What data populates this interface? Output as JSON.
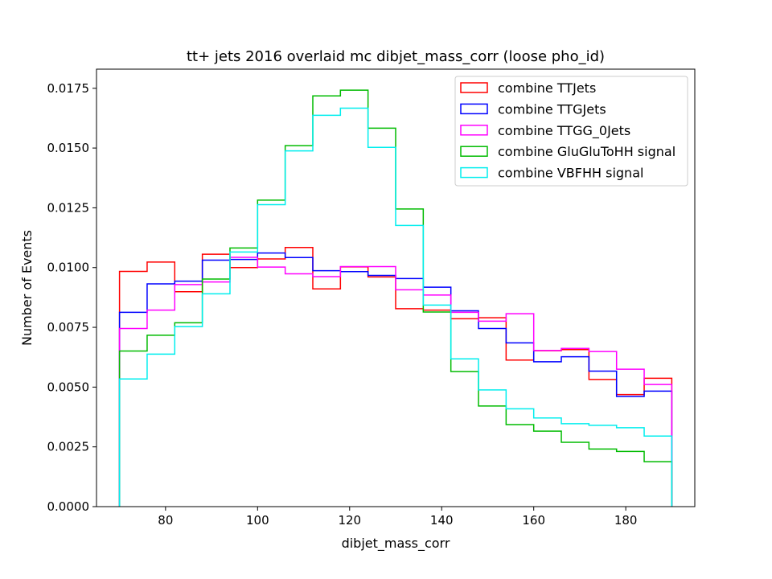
{
  "chart_data": {
    "type": "histogram-step",
    "title": "tt+ jets 2016 overlaid mc dibjet_mass_corr (loose pho_id)",
    "xlabel": "dibjet_mass_corr",
    "ylabel": "Number of Events",
    "xlim": [
      65,
      195
    ],
    "ylim": [
      0,
      0.0183
    ],
    "xticks": [
      80,
      100,
      120,
      140,
      160,
      180
    ],
    "xtick_labels": [
      "80",
      "100",
      "120",
      "140",
      "160",
      "180"
    ],
    "yticks": [
      0,
      0.0025,
      0.005,
      0.0075,
      0.01,
      0.0125,
      0.015,
      0.0175
    ],
    "ytick_labels": [
      "0.0000",
      "0.0025",
      "0.0050",
      "0.0075",
      "0.0100",
      "0.0125",
      "0.0150",
      "0.0175"
    ],
    "grid": false,
    "legend_position": "top-right",
    "bin_edges": [
      70,
      76,
      82,
      88,
      94,
      100,
      106,
      112,
      118,
      124,
      130,
      136,
      142,
      148,
      154,
      160,
      166,
      172,
      178,
      184,
      190
    ],
    "series": [
      {
        "name": "combine TTJets",
        "color": "#ff0000",
        "values": [
          0.00984,
          0.01023,
          0.00899,
          0.01056,
          0.01,
          0.01036,
          0.01084,
          0.00911,
          0.01003,
          0.00961,
          0.00828,
          0.00822,
          0.00786,
          0.0079,
          0.00613,
          0.00652,
          0.00657,
          0.00532,
          0.00469,
          0.00537
        ]
      },
      {
        "name": "combine TTGJets",
        "color": "#0000ff",
        "values": [
          0.00813,
          0.00932,
          0.00943,
          0.01031,
          0.01034,
          0.01061,
          0.01042,
          0.00987,
          0.00983,
          0.00967,
          0.00954,
          0.00918,
          0.00819,
          0.00745,
          0.00685,
          0.00606,
          0.00627,
          0.00567,
          0.00461,
          0.00483
        ]
      },
      {
        "name": "combine TTGG_0Jets",
        "color": "#ff00ff",
        "values": [
          0.00745,
          0.00822,
          0.00929,
          0.0094,
          0.01043,
          0.01002,
          0.00974,
          0.00962,
          0.01004,
          0.01004,
          0.00907,
          0.00885,
          0.00813,
          0.00776,
          0.00807,
          0.00653,
          0.00662,
          0.00649,
          0.00575,
          0.00511
        ]
      },
      {
        "name": "combine GluGluToHH signal",
        "color": "#00bb00",
        "values": [
          0.00651,
          0.00717,
          0.00769,
          0.00952,
          0.01082,
          0.01282,
          0.0151,
          0.01718,
          0.01742,
          0.01583,
          0.01245,
          0.00814,
          0.00565,
          0.00421,
          0.00343,
          0.00316,
          0.00269,
          0.00241,
          0.00231,
          0.00188
        ]
      },
      {
        "name": "combine VBFHH signal",
        "color": "#00eeee",
        "values": [
          0.00534,
          0.00638,
          0.00753,
          0.0089,
          0.01065,
          0.01263,
          0.01488,
          0.01637,
          0.01667,
          0.01503,
          0.01176,
          0.00843,
          0.00618,
          0.00488,
          0.00409,
          0.00371,
          0.00347,
          0.0034,
          0.0033,
          0.00295
        ]
      }
    ]
  }
}
